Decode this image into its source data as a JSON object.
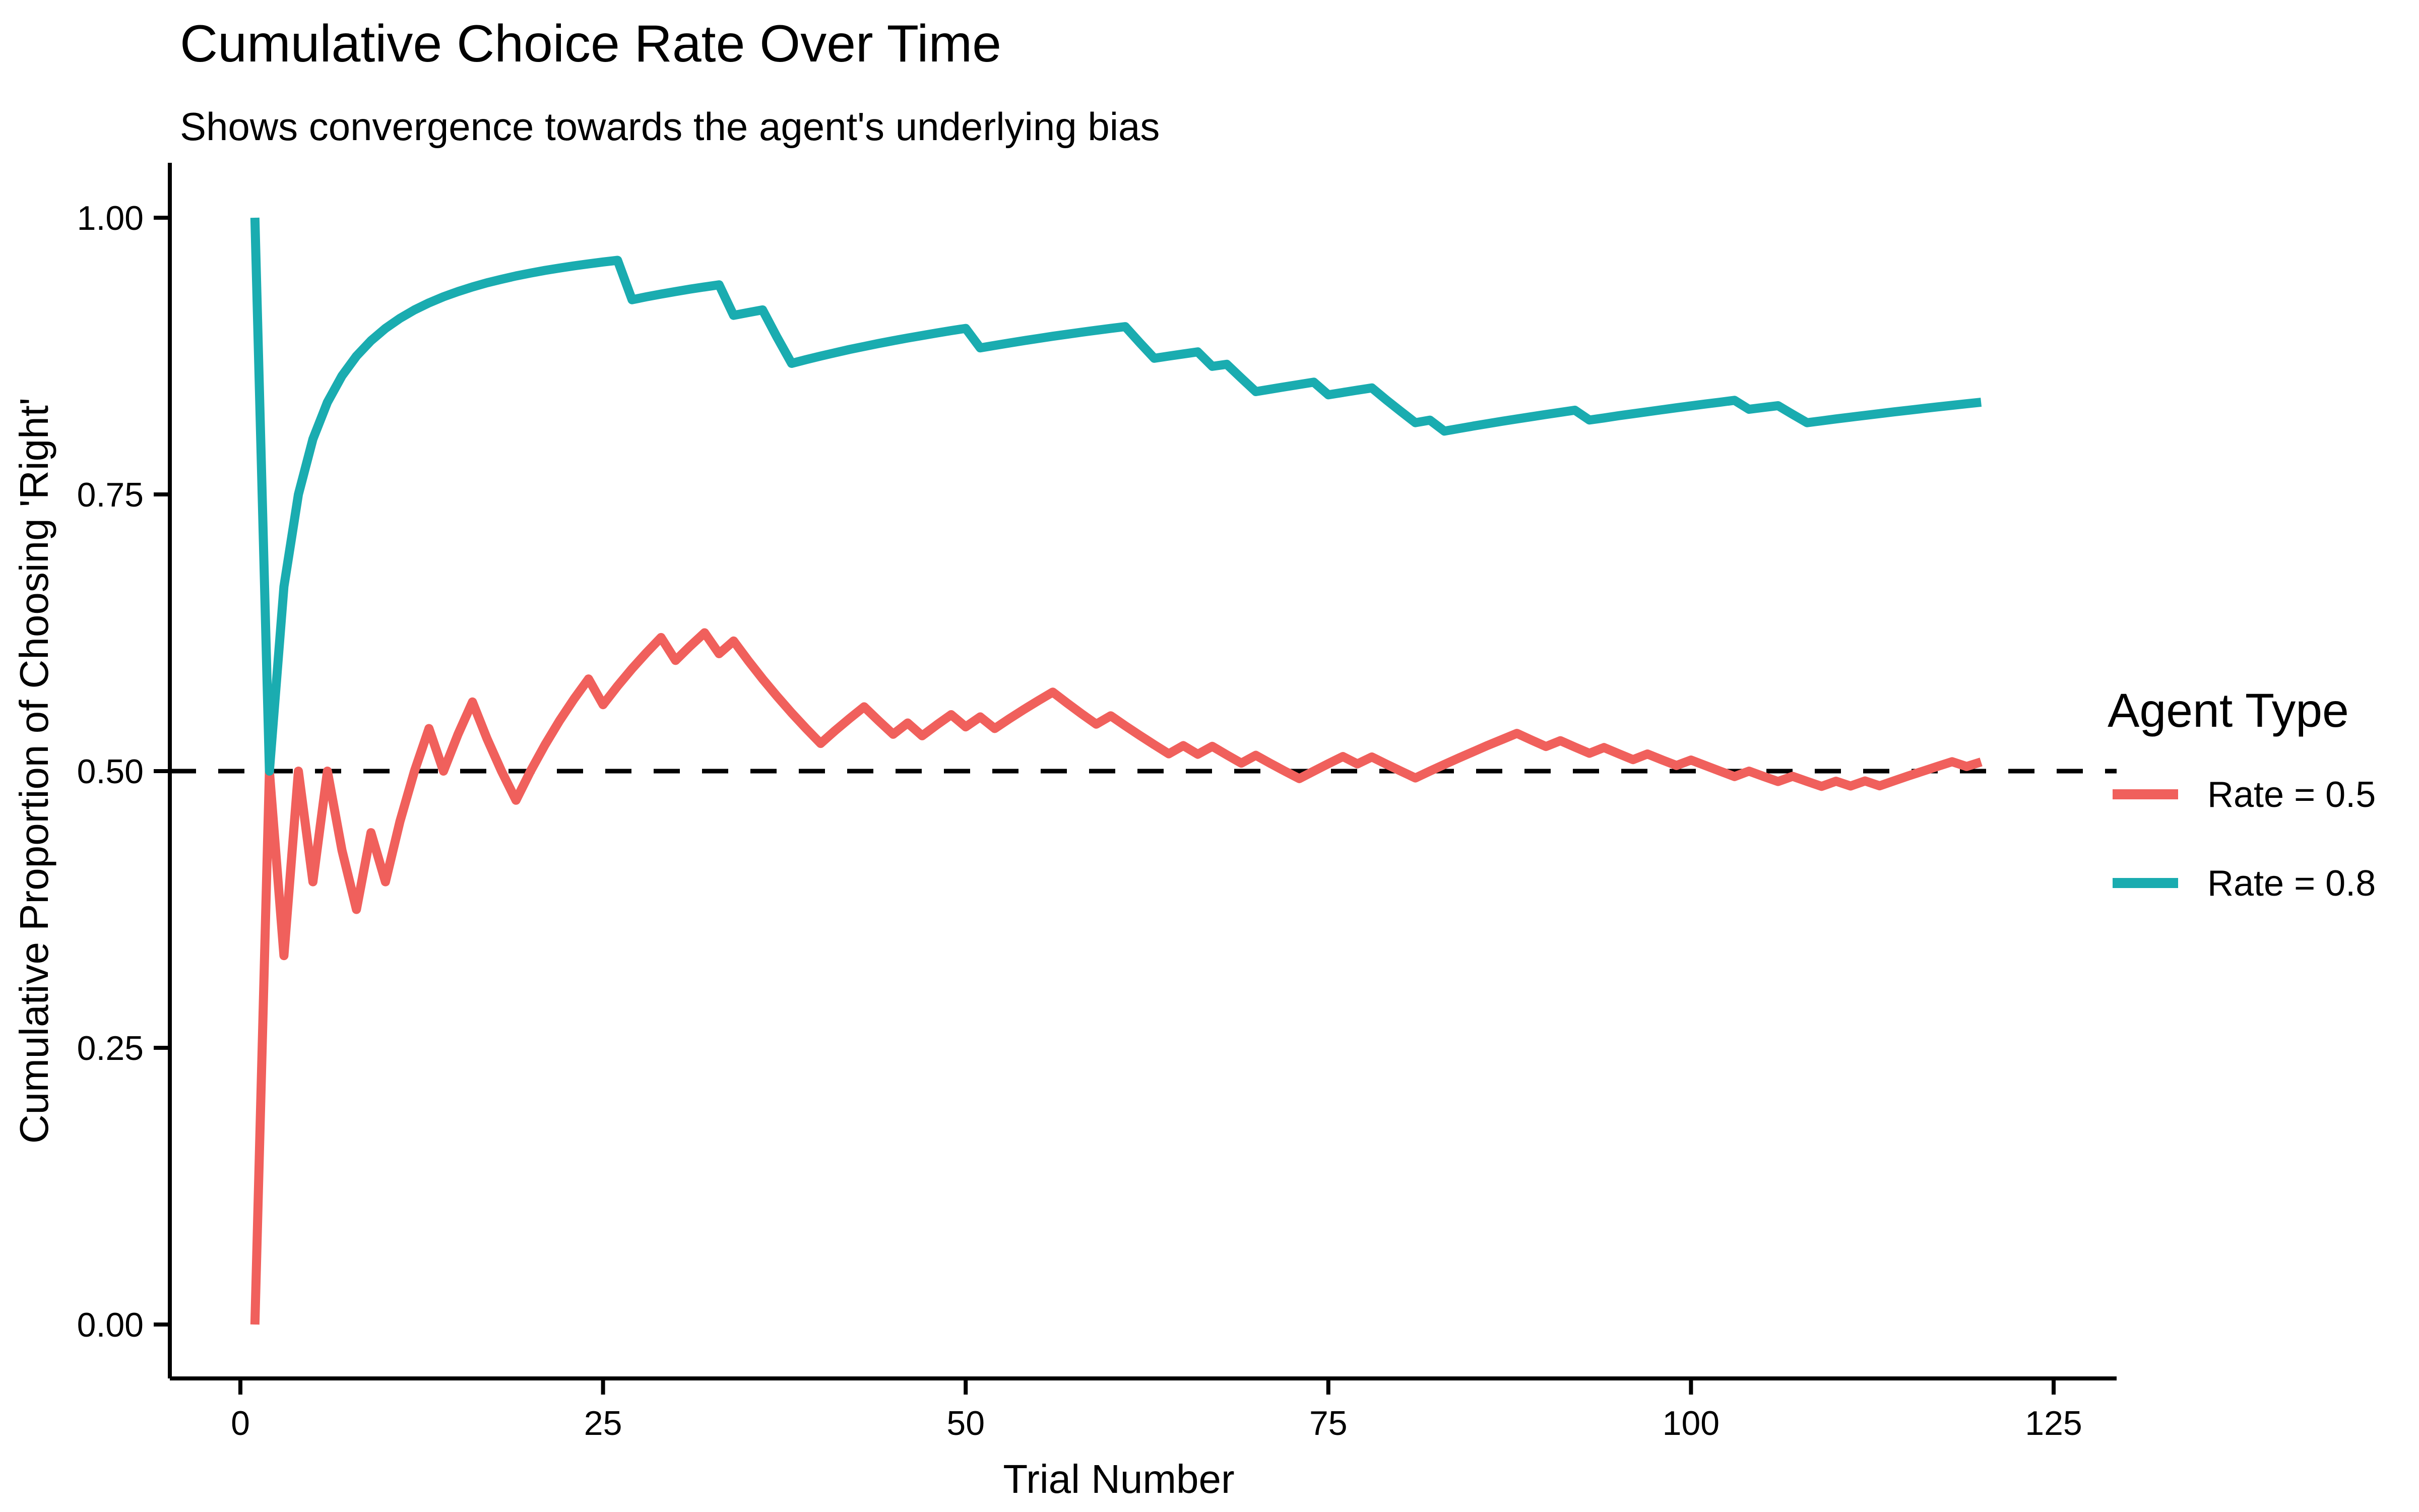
{
  "title": "Cumulative Choice Rate Over Time",
  "subtitle": "Shows convergence towards the agent's underlying bias",
  "chart_data": {
    "type": "line",
    "title": "Cumulative Choice Rate Over Time",
    "subtitle": "Shows convergence towards the agent's underlying bias",
    "xlabel": "Trial Number",
    "ylabel": "Cumulative Proportion of Choosing 'Right'",
    "xlim": [
      0,
      125
    ],
    "ylim": [
      0.0,
      1.0
    ],
    "grid": false,
    "x_ticks": [
      {
        "v": 0,
        "label": "0"
      },
      {
        "v": 25,
        "label": "25"
      },
      {
        "v": 50,
        "label": "50"
      },
      {
        "v": 75,
        "label": "75"
      },
      {
        "v": 100,
        "label": "100"
      },
      {
        "v": 125,
        "label": "125"
      }
    ],
    "y_ticks": [
      {
        "v": 0.0,
        "label": "0.00"
      },
      {
        "v": 0.25,
        "label": "0.25"
      },
      {
        "v": 0.5,
        "label": "0.50"
      },
      {
        "v": 0.75,
        "label": "0.75"
      },
      {
        "v": 1.0,
        "label": "1.00"
      }
    ],
    "reference_line": {
      "y": 0.5,
      "style": "dashed",
      "color": "#000000"
    },
    "legend": {
      "title": "Agent Type",
      "position": "right"
    },
    "x": [
      1,
      2,
      3,
      4,
      5,
      6,
      7,
      8,
      9,
      10,
      11,
      12,
      13,
      14,
      15,
      16,
      17,
      18,
      19,
      20,
      21,
      22,
      23,
      24,
      25,
      26,
      27,
      28,
      29,
      30,
      31,
      32,
      33,
      34,
      35,
      36,
      37,
      38,
      39,
      40,
      41,
      42,
      43,
      44,
      45,
      46,
      47,
      48,
      49,
      50,
      51,
      52,
      53,
      54,
      55,
      56,
      57,
      58,
      59,
      60,
      61,
      62,
      63,
      64,
      65,
      66,
      67,
      68,
      69,
      70,
      71,
      72,
      73,
      74,
      75,
      76,
      77,
      78,
      79,
      80,
      81,
      82,
      83,
      84,
      85,
      86,
      87,
      88,
      89,
      90,
      91,
      92,
      93,
      94,
      95,
      96,
      97,
      98,
      99,
      100,
      101,
      102,
      103,
      104,
      105,
      106,
      107,
      108,
      109,
      110,
      111,
      112,
      113,
      114,
      115,
      116,
      117,
      118,
      119,
      120
    ],
    "series": [
      {
        "name": "Rate = 0.5",
        "color": "#F0605C",
        "values": [
          0.0,
          0.5,
          0.3333,
          0.5,
          0.4,
          0.5,
          0.4286,
          0.375,
          0.4444,
          0.4,
          0.4545,
          0.5,
          0.5385,
          0.5,
          0.5333,
          0.5625,
          0.5294,
          0.5,
          0.4737,
          0.5,
          0.5238,
          0.5455,
          0.5652,
          0.5833,
          0.56,
          0.5769,
          0.5926,
          0.6071,
          0.6207,
          0.6,
          0.6129,
          0.625,
          0.6061,
          0.6176,
          0.6,
          0.5833,
          0.5676,
          0.5526,
          0.5385,
          0.525,
          0.5366,
          0.5476,
          0.5581,
          0.5455,
          0.5333,
          0.5435,
          0.5319,
          0.5417,
          0.551,
          0.54,
          0.549,
          0.5385,
          0.5472,
          0.5556,
          0.5636,
          0.5714,
          0.5614,
          0.5517,
          0.5424,
          0.55,
          0.541,
          0.5323,
          0.5238,
          0.5156,
          0.5231,
          0.5152,
          0.5224,
          0.5147,
          0.5072,
          0.5143,
          0.507,
          0.5,
          0.4932,
          0.5,
          0.5067,
          0.5132,
          0.5065,
          0.5128,
          0.5063,
          0.5,
          0.4938,
          0.5,
          0.506,
          0.5119,
          0.5176,
          0.5233,
          0.5287,
          0.5341,
          0.5281,
          0.5222,
          0.5275,
          0.5217,
          0.5161,
          0.5213,
          0.5158,
          0.5104,
          0.5155,
          0.5102,
          0.5051,
          0.51,
          0.505,
          0.5,
          0.4951,
          0.5,
          0.4952,
          0.4906,
          0.4953,
          0.4907,
          0.4862,
          0.4909,
          0.4865,
          0.4911,
          0.4867,
          0.4912,
          0.4957,
          0.5,
          0.5043,
          0.5085,
          0.5042,
          0.5083
        ]
      },
      {
        "name": "Rate = 0.8",
        "color": "#1AACB0",
        "values": [
          1.0,
          0.5,
          0.6667,
          0.75,
          0.8,
          0.8333,
          0.8571,
          0.875,
          0.8889,
          0.9,
          0.9091,
          0.9167,
          0.9231,
          0.9286,
          0.9333,
          0.9375,
          0.9412,
          0.9444,
          0.9474,
          0.95,
          0.9524,
          0.9545,
          0.9565,
          0.9583,
          0.96,
          0.9615,
          0.9259,
          0.9286,
          0.931,
          0.9333,
          0.9355,
          0.9375,
          0.9394,
          0.9118,
          0.9143,
          0.9167,
          0.8919,
          0.8684,
          0.8718,
          0.875,
          0.878,
          0.881,
          0.8837,
          0.8864,
          0.8889,
          0.8913,
          0.8936,
          0.8958,
          0.898,
          0.9,
          0.8824,
          0.8846,
          0.8868,
          0.8889,
          0.8909,
          0.8929,
          0.8947,
          0.8966,
          0.8983,
          0.9,
          0.9016,
          0.8871,
          0.873,
          0.875,
          0.8769,
          0.8788,
          0.8657,
          0.8676,
          0.8551,
          0.8429,
          0.8451,
          0.8472,
          0.8493,
          0.8514,
          0.84,
          0.8421,
          0.8442,
          0.8462,
          0.8354,
          0.825,
          0.8148,
          0.8171,
          0.8072,
          0.8095,
          0.8118,
          0.814,
          0.8161,
          0.8182,
          0.8202,
          0.8222,
          0.8242,
          0.8261,
          0.8172,
          0.8191,
          0.8211,
          0.8229,
          0.8247,
          0.8265,
          0.8283,
          0.83,
          0.8317,
          0.8333,
          0.835,
          0.8269,
          0.8286,
          0.8302,
          0.8224,
          0.8148,
          0.8165,
          0.8182,
          0.8198,
          0.8214,
          0.823,
          0.8246,
          0.8261,
          0.8276,
          0.8291,
          0.8305,
          0.8319,
          0.8333
        ]
      }
    ]
  }
}
